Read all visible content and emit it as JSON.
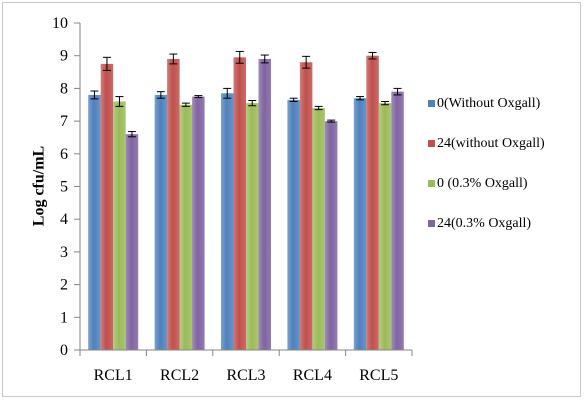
{
  "chart_data": {
    "type": "bar",
    "title": "",
    "xlabel": "",
    "ylabel": "Log cfu/mL",
    "ylim": [
      0,
      10
    ],
    "yticks": [
      0,
      1,
      2,
      3,
      4,
      5,
      6,
      7,
      8,
      9,
      10
    ],
    "grid": false,
    "legend_position": "right",
    "categories": [
      "RCL1",
      "RCL2",
      "RCL3",
      "RCL4",
      "RCL5"
    ],
    "series": [
      {
        "name": "0(Without Oxgall)",
        "color": "#4f81bd",
        "values": [
          7.8,
          7.8,
          7.85,
          7.65,
          7.7
        ],
        "errors": [
          0.12,
          0.1,
          0.15,
          0.05,
          0.05
        ]
      },
      {
        "name": "24(without Oxgall)",
        "color": "#c0504d",
        "values": [
          8.75,
          8.9,
          8.95,
          8.8,
          9.0
        ],
        "errors": [
          0.2,
          0.15,
          0.18,
          0.18,
          0.1
        ]
      },
      {
        "name": "0 (0.3% Oxgall)",
        "color": "#9bbb59",
        "values": [
          7.6,
          7.5,
          7.55,
          7.4,
          7.55
        ],
        "errors": [
          0.15,
          0.05,
          0.08,
          0.05,
          0.05
        ]
      },
      {
        "name": "24(0.3% Oxgall)",
        "color": "#8064a2",
        "values": [
          6.6,
          7.75,
          8.9,
          7.0,
          7.9
        ],
        "errors": [
          0.08,
          0.03,
          0.12,
          0.03,
          0.1
        ]
      }
    ]
  }
}
